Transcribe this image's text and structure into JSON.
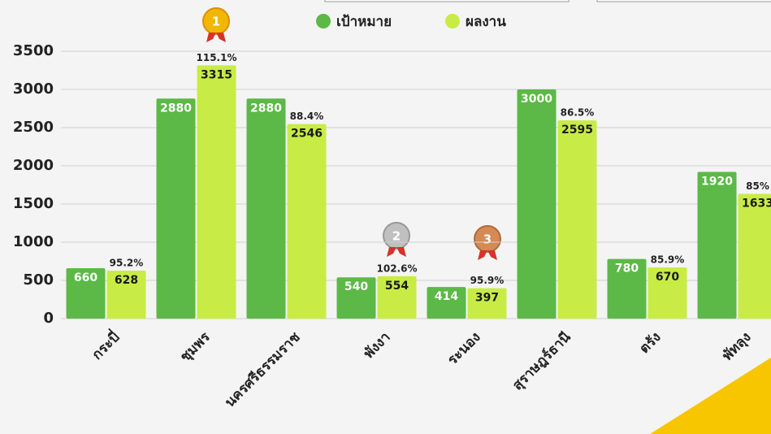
{
  "chart_data": {
    "type": "bar",
    "categories": [
      "กระบี่",
      "ชุมพร",
      "นครศรีธรรมราช",
      "พังงา",
      "ระนอง",
      "สุราษฎร์ธานี",
      "ตรัง",
      "พัทลุง"
    ],
    "series": [
      {
        "name": "เป้าหมาย",
        "color": "#5cb947",
        "values": [
          660,
          2880,
          2880,
          540,
          414,
          3000,
          780,
          1920
        ]
      },
      {
        "name": "ผลงาน",
        "color": "#c8ec45",
        "values": [
          628,
          3315,
          2546,
          554,
          397,
          2595,
          670,
          1633
        ]
      }
    ],
    "annotations": [
      "95.2%",
      "115.1%",
      "88.4%",
      "102.6%",
      "95.9%",
      "86.5%",
      "85.9%",
      "85%"
    ],
    "medals": [
      1,
      2,
      3
    ],
    "ylim": [
      0,
      3500
    ],
    "yticks": [
      0,
      500,
      1000,
      1500,
      2000,
      2500,
      3000,
      3500
    ],
    "grid": true
  }
}
